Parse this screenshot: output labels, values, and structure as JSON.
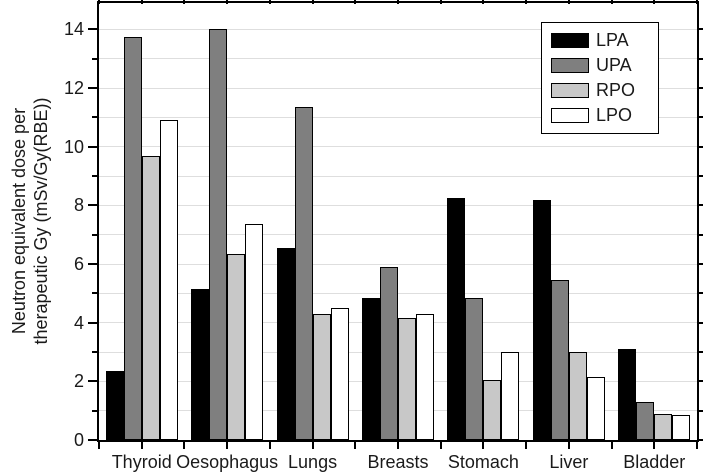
{
  "chart_data": {
    "type": "bar",
    "title": "",
    "ylabel_lines": [
      "Neutron equivalent dose per",
      "therapeutic Gy (mSv/Gy(RBE))"
    ],
    "xlabel": "",
    "categories": [
      "Thyroid",
      "Oesophagus",
      "Lungs",
      "Breasts",
      "Stomach",
      "Liver",
      "Bladder"
    ],
    "series": [
      {
        "name": "LPA",
        "color": "#000000",
        "values": [
          2.35,
          5.15,
          6.55,
          4.85,
          8.25,
          8.2,
          3.1
        ]
      },
      {
        "name": "UPA",
        "color": "#7f7f7f",
        "values": [
          13.75,
          14.0,
          11.35,
          5.9,
          4.85,
          5.45,
          1.3
        ]
      },
      {
        "name": "RPO",
        "color": "#c8c8c8",
        "values": [
          9.7,
          6.35,
          4.3,
          4.15,
          2.05,
          3.0,
          0.9
        ]
      },
      {
        "name": "LPO",
        "color": "#ffffff",
        "values": [
          10.9,
          7.35,
          4.5,
          4.3,
          3.0,
          2.15,
          0.85
        ]
      }
    ],
    "ylim": [
      0,
      14.9
    ],
    "yticks_major": [
      0,
      2,
      4,
      6,
      8,
      10,
      12,
      14
    ],
    "yticks_minor": [
      1,
      3,
      5,
      7,
      9,
      11,
      13
    ],
    "grid": "horizontal gridlines at every integer 1-14",
    "gridline_color": "#dedede",
    "bar_border_color": "#000000",
    "legend_position": "top-right inside plot",
    "legend_entries": [
      "LPA",
      "UPA",
      "RPO",
      "LPO"
    ]
  }
}
